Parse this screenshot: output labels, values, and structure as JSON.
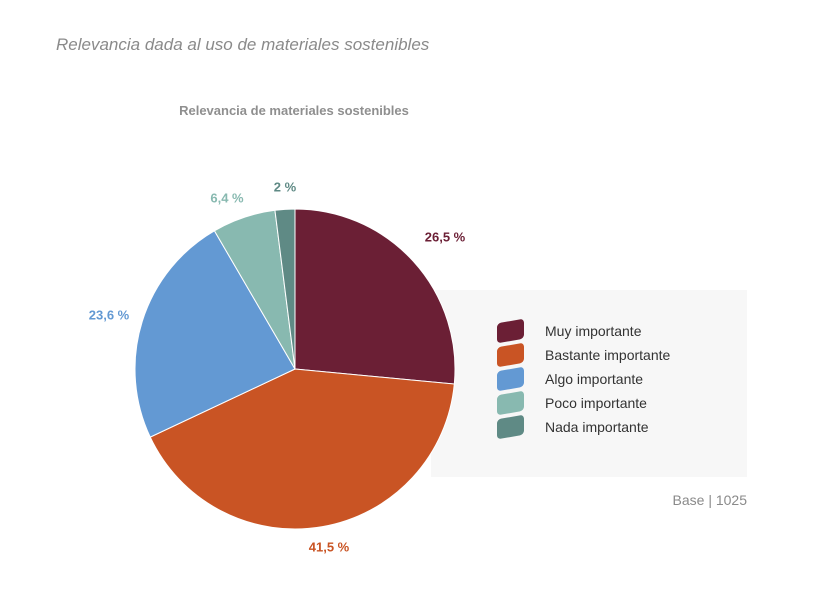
{
  "page_title": "Relevancia dada al uso de materiales sostenibles",
  "base_note": "Base | 1025",
  "chart_data": {
    "type": "pie",
    "title": "Relevancia de materiales sostenibles",
    "start_angle_deg": 0,
    "direction": "clockwise",
    "legend_position": "right",
    "slices": [
      {
        "name": "Muy importante",
        "value": 26.5,
        "label": "26,5 %",
        "color": "#6b1f35"
      },
      {
        "name": "Bastante importante",
        "value": 41.5,
        "label": "41,5 %",
        "color": "#c95424"
      },
      {
        "name": "Algo importante",
        "value": 23.6,
        "label": "23,6 %",
        "color": "#6399d3"
      },
      {
        "name": "Poco importante",
        "value": 6.4,
        "label": "6,4 %",
        "color": "#88b9b0"
      },
      {
        "name": "Nada importante",
        "value": 2,
        "label": "2 %",
        "color": "#5f8a85"
      }
    ]
  }
}
